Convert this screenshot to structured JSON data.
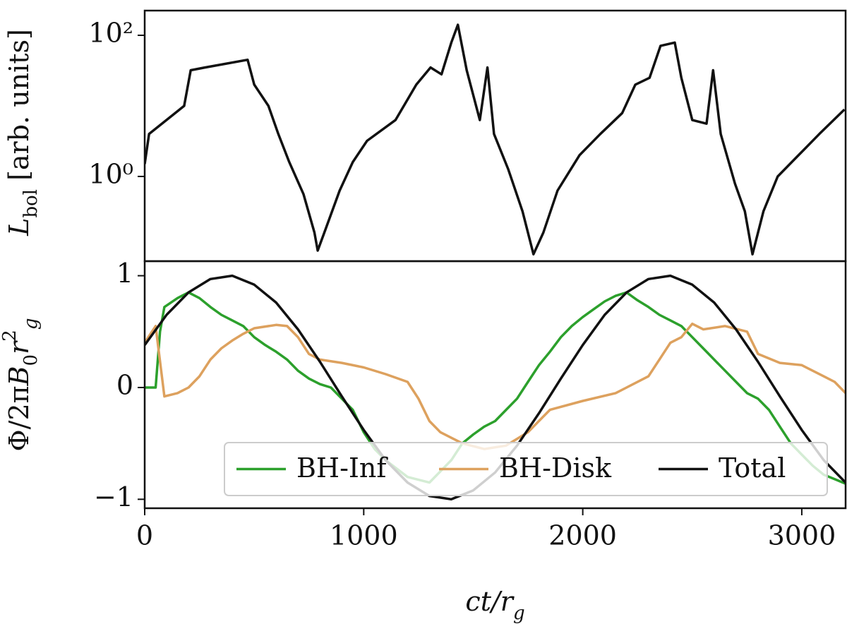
{
  "chart_data": [
    {
      "type": "line",
      "log_y": true,
      "ylabel": [
        {
          "text": "L",
          "style": "italic"
        },
        {
          "text": "bol",
          "shift": "sub"
        },
        {
          "text": " [arb. units]"
        }
      ],
      "xlim": [
        0,
        3200
      ],
      "xticks": [
        0,
        1000,
        2000,
        3000
      ],
      "ylim": [
        0.063,
        224
      ],
      "yticks": [
        {
          "value": 1,
          "label": "10⁰"
        },
        {
          "value": 100,
          "label": "10²"
        }
      ],
      "series": [
        {
          "color": "#111111",
          "x": [
            0,
            20,
            180,
            210,
            275,
            470,
            500,
            565,
            610,
            660,
            725,
            775,
            790,
            820,
            890,
            950,
            1015,
            1145,
            1240,
            1305,
            1355,
            1400,
            1430,
            1470,
            1530,
            1565,
            1595,
            1660,
            1725,
            1775,
            1820,
            1885,
            1985,
            2080,
            2180,
            2240,
            2305,
            2355,
            2420,
            2450,
            2500,
            2565,
            2595,
            2630,
            2695,
            2740,
            2775,
            2825,
            2890,
            2985,
            3080,
            3195
          ],
          "values": [
            1.5,
            4.0,
            10,
            32,
            35,
            45,
            20,
            10,
            4.0,
            1.6,
            0.56,
            0.16,
            0.089,
            0.16,
            0.63,
            1.6,
            3.2,
            6.3,
            20,
            35,
            28,
            79,
            141,
            32,
            6.3,
            35,
            4.0,
            1.26,
            0.32,
            0.079,
            0.16,
            0.63,
            2.0,
            4.0,
            7.9,
            20,
            25,
            71,
            79,
            25,
            6.3,
            5.6,
            32,
            4.0,
            0.79,
            0.32,
            0.079,
            0.32,
            1.0,
            2.0,
            4.0,
            8.9
          ]
        }
      ]
    },
    {
      "type": "line",
      "ylabel": [
        {
          "text": "Φ/2π"
        },
        {
          "text": "B",
          "style": "italic"
        },
        {
          "text": "0",
          "shift": "sub"
        },
        {
          "text": "r",
          "style": "italic"
        },
        {
          "text": "2",
          "shift": "sup"
        },
        {
          "text": "g",
          "shift": "sub",
          "style": "italic"
        }
      ],
      "xlabel": [
        {
          "text": "ct/r",
          "style": "italic"
        },
        {
          "text": "g",
          "shift": "sub",
          "style": "italic"
        }
      ],
      "xlim": [
        0,
        3200
      ],
      "xticks": [
        0,
        1000,
        2000,
        3000
      ],
      "ylim": [
        -1.08,
        1.13
      ],
      "yticks": [
        {
          "value": -1,
          "label": "−1"
        },
        0,
        1
      ],
      "legend": "lower right",
      "series": [
        {
          "name": "BH-Inf",
          "color": "#2ca02c",
          "x": [
            0,
            50,
            70,
            90,
            150,
            200,
            250,
            300,
            350,
            400,
            450,
            500,
            550,
            600,
            650,
            700,
            750,
            800,
            850,
            900,
            950,
            1000,
            1050,
            1100,
            1200,
            1300,
            1400,
            1450,
            1500,
            1550,
            1600,
            1650,
            1700,
            1750,
            1800,
            1850,
            1900,
            1950,
            2000,
            2050,
            2100,
            2150,
            2200,
            2250,
            2300,
            2350,
            2400,
            2450,
            2500,
            2550,
            2600,
            2650,
            2700,
            2750,
            2800,
            2850,
            2900,
            2950,
            3000,
            3050,
            3100,
            3150,
            3200
          ],
          "values": [
            0,
            0,
            0.5,
            0.72,
            0.8,
            0.85,
            0.8,
            0.72,
            0.65,
            0.6,
            0.55,
            0.45,
            0.38,
            0.32,
            0.25,
            0.15,
            0.08,
            0.03,
            0.0,
            -0.1,
            -0.2,
            -0.4,
            -0.55,
            -0.65,
            -0.8,
            -0.85,
            -0.65,
            -0.5,
            -0.42,
            -0.35,
            -0.3,
            -0.2,
            -0.1,
            0.05,
            0.2,
            0.32,
            0.45,
            0.55,
            0.63,
            0.7,
            0.77,
            0.82,
            0.85,
            0.78,
            0.72,
            0.65,
            0.6,
            0.55,
            0.45,
            0.35,
            0.25,
            0.15,
            0.05,
            -0.05,
            -0.1,
            -0.2,
            -0.35,
            -0.5,
            -0.6,
            -0.7,
            -0.78,
            -0.82,
            -0.86
          ]
        },
        {
          "name": "BH-Disk",
          "color": "#dda15e",
          "x": [
            0,
            50,
            90,
            150,
            200,
            250,
            300,
            350,
            400,
            450,
            500,
            600,
            650,
            700,
            750,
            800,
            900,
            1000,
            1100,
            1200,
            1250,
            1300,
            1350,
            1400,
            1450,
            1550,
            1650,
            1750,
            1850,
            2000,
            2150,
            2200,
            2300,
            2350,
            2400,
            2450,
            2500,
            2550,
            2650,
            2750,
            2800,
            2900,
            3000,
            3100,
            3150,
            3200
          ],
          "values": [
            0.4,
            0.55,
            -0.08,
            -0.05,
            0.0,
            0.1,
            0.25,
            0.35,
            0.42,
            0.48,
            0.53,
            0.56,
            0.55,
            0.45,
            0.3,
            0.25,
            0.22,
            0.18,
            0.12,
            0.05,
            -0.1,
            -0.3,
            -0.4,
            -0.45,
            -0.5,
            -0.55,
            -0.52,
            -0.4,
            -0.2,
            -0.12,
            -0.05,
            0.0,
            0.1,
            0.25,
            0.4,
            0.45,
            0.57,
            0.52,
            0.55,
            0.5,
            0.3,
            0.22,
            0.2,
            0.1,
            0.05,
            -0.05
          ]
        },
        {
          "name": "Total",
          "color": "#111111",
          "x": [
            0,
            100,
            200,
            300,
            400,
            500,
            600,
            700,
            800,
            900,
            1000,
            1100,
            1200,
            1300,
            1400,
            1500,
            1600,
            1700,
            1800,
            1900,
            2000,
            2100,
            2200,
            2300,
            2400,
            2500,
            2600,
            2700,
            2800,
            2900,
            3000,
            3100,
            3200
          ],
          "values": [
            0.38,
            0.65,
            0.85,
            0.97,
            1.0,
            0.92,
            0.76,
            0.52,
            0.23,
            -0.08,
            -0.38,
            -0.65,
            -0.85,
            -0.97,
            -1.0,
            -0.92,
            -0.76,
            -0.52,
            -0.23,
            0.08,
            0.38,
            0.65,
            0.85,
            0.97,
            1.0,
            0.92,
            0.76,
            0.52,
            0.23,
            -0.08,
            -0.38,
            -0.65,
            -0.85
          ]
        }
      ]
    }
  ]
}
